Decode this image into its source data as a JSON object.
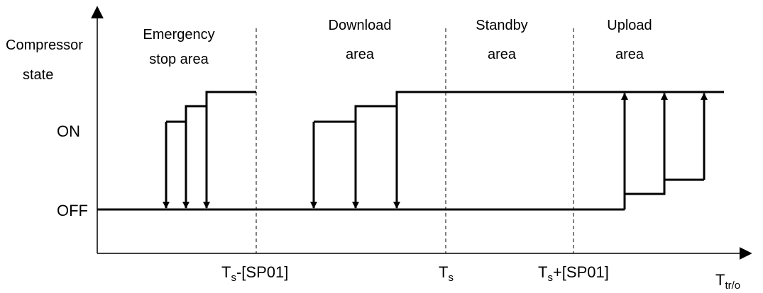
{
  "y_axis": {
    "title_line1": "Compressor",
    "title_line2": "state",
    "tick_on": "ON",
    "tick_off": "OFF"
  },
  "x_axis": {
    "title_main": "T",
    "title_sub": "tr/o",
    "ticks": [
      {
        "main": "T",
        "sub": "s",
        "rest": "-[SP01]"
      },
      {
        "main": "T",
        "sub": "s",
        "rest": ""
      },
      {
        "main": "T",
        "sub": "s",
        "rest": "+[SP01]"
      }
    ]
  },
  "areas": [
    {
      "line1": "Emergency",
      "line2": "stop area"
    },
    {
      "line1": "Download",
      "line2": "area"
    },
    {
      "line1": "Standby",
      "line2": "area"
    },
    {
      "line1": "Upload",
      "line2": "area"
    }
  ],
  "colors": {
    "ink": "#000000"
  }
}
